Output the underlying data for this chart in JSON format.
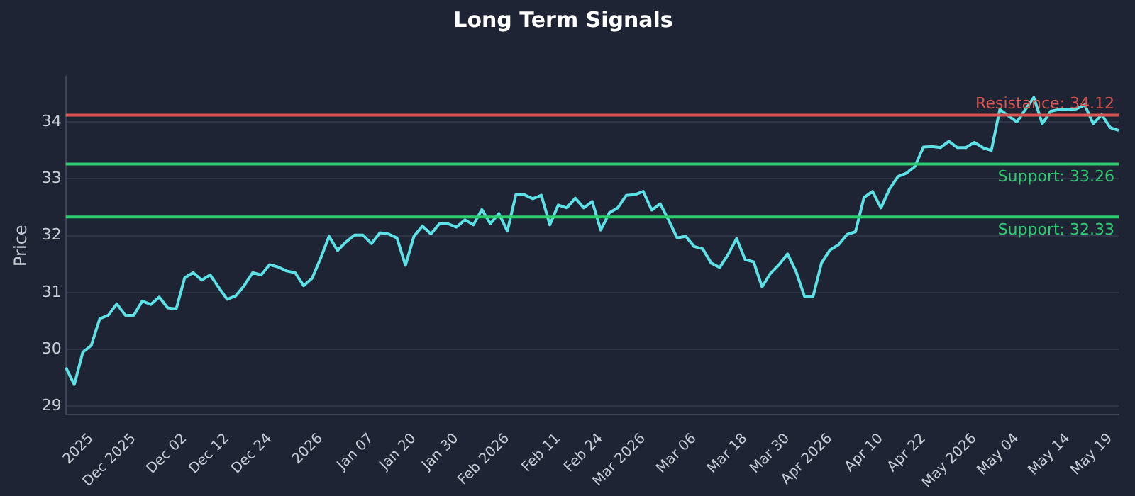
{
  "chart_data": {
    "type": "line",
    "title": "Long Term Signals",
    "ylabel": "Price",
    "categories": [
      null,
      null,
      null,
      "2025",
      null,
      null,
      null,
      null,
      "Dec 2025",
      null,
      null,
      null,
      null,
      null,
      "Dec 02",
      null,
      null,
      null,
      null,
      "Dec 12",
      null,
      null,
      null,
      null,
      "Dec 24",
      null,
      null,
      null,
      null,
      null,
      "2026",
      null,
      null,
      null,
      null,
      null,
      "Jan 07",
      null,
      null,
      null,
      null,
      "Jan 20",
      null,
      null,
      null,
      null,
      "Jan 30",
      null,
      null,
      null,
      null,
      null,
      "Feb 2026",
      null,
      null,
      null,
      null,
      null,
      "Feb 11",
      null,
      null,
      null,
      null,
      "Feb 24",
      null,
      null,
      null,
      null,
      "Mar 2026",
      null,
      null,
      null,
      null,
      null,
      "Mar 06",
      null,
      null,
      null,
      null,
      null,
      "Mar 18",
      null,
      null,
      null,
      null,
      "Mar 30",
      null,
      null,
      null,
      null,
      "Apr 2026",
      null,
      null,
      null,
      null,
      null,
      "Apr 10",
      null,
      null,
      null,
      null,
      "Apr 22",
      null,
      null,
      null,
      null,
      null,
      "May 2026",
      null,
      null,
      null,
      null,
      "May 04",
      null,
      null,
      null,
      null,
      null,
      "May 14",
      null,
      null,
      null,
      null,
      "May 19",
      null
    ],
    "series": [
      {
        "color": "#5ce1e6",
        "values": [
          29.68,
          29.38,
          29.95,
          30.07,
          30.54,
          30.6,
          30.8,
          30.6,
          30.6,
          30.85,
          30.79,
          30.92,
          30.73,
          30.71,
          31.26,
          31.35,
          31.22,
          31.31,
          31.09,
          30.88,
          30.94,
          31.12,
          31.35,
          31.31,
          31.49,
          31.45,
          31.38,
          31.35,
          31.12,
          31.25,
          31.6,
          31.99,
          31.74,
          31.89,
          32.01,
          32.01,
          31.86,
          32.05,
          32.03,
          31.96,
          31.48,
          31.99,
          32.17,
          32.03,
          32.21,
          32.21,
          32.15,
          32.28,
          32.19,
          32.46,
          32.21,
          32.39,
          32.08,
          32.72,
          32.72,
          32.65,
          32.71,
          32.19,
          32.54,
          32.49,
          32.66,
          32.49,
          32.6,
          32.1,
          32.4,
          32.49,
          32.71,
          32.72,
          32.78,
          32.45,
          32.56,
          32.27,
          31.96,
          31.99,
          31.81,
          31.77,
          31.52,
          31.44,
          31.67,
          31.95,
          31.58,
          31.54,
          31.1,
          31.34,
          31.49,
          31.68,
          31.37,
          30.93,
          30.93,
          31.52,
          31.75,
          31.84,
          32.02,
          32.07,
          32.67,
          32.78,
          32.49,
          32.82,
          33.04,
          33.1,
          33.22,
          33.56,
          33.57,
          33.55,
          33.66,
          33.55,
          33.55,
          33.64,
          33.55,
          33.5,
          34.22,
          34.11,
          34.0,
          34.22,
          34.43,
          33.97,
          34.19,
          34.22,
          34.22,
          34.23,
          34.3,
          33.97,
          34.13,
          33.9,
          33.85
        ]
      }
    ],
    "ylim": [
      28.85,
      34.8
    ],
    "yticks": [
      29,
      30,
      31,
      32,
      33,
      34
    ],
    "ref_lines": [
      {
        "axis": "y",
        "value": 34.12,
        "label": "Resistance: 34.12",
        "color": "#d9534f"
      },
      {
        "axis": "y",
        "value": 33.26,
        "label": "Support: 33.26",
        "color": "#2ecc71"
      },
      {
        "axis": "y",
        "value": 32.33,
        "label": "Support: 32.33",
        "color": "#2ecc71"
      }
    ],
    "grid": "y",
    "legend": false,
    "marker": "none",
    "line_style": "solid"
  }
}
